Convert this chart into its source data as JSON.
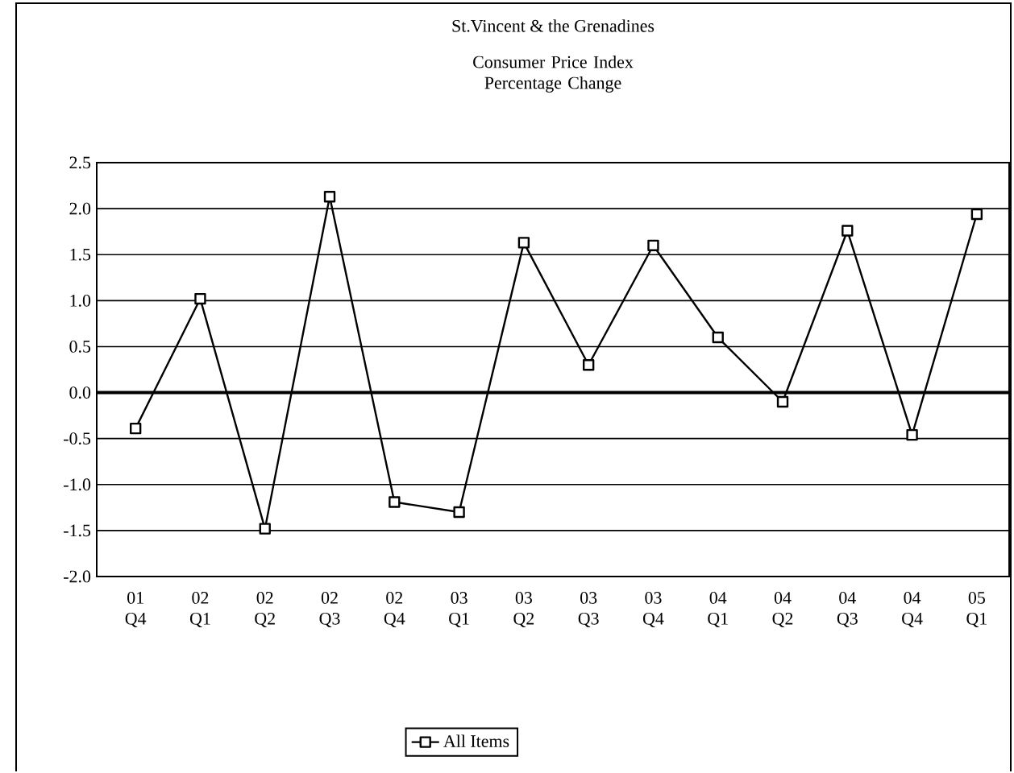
{
  "chart_data": {
    "type": "line",
    "title": "St.Vincent & the Grenadines",
    "subtitle": "Consumer Price Index Percentage Change",
    "categories": [
      "01 Q4",
      "02 Q1",
      "02 Q2",
      "02 Q3",
      "02 Q4",
      "03 Q1",
      "03 Q2",
      "03 Q3",
      "03 Q4",
      "04 Q1",
      "04 Q2",
      "04 Q3",
      "04 Q4",
      "05 Q1"
    ],
    "series": [
      {
        "name": "All Items",
        "color": "#000000",
        "values": [
          -0.39,
          1.02,
          -1.48,
          2.13,
          -1.19,
          -1.3,
          1.63,
          0.3,
          1.6,
          0.6,
          -0.1,
          1.76,
          -0.46,
          1.94
        ]
      }
    ],
    "ylim": [
      -2.0,
      2.5
    ],
    "yticks": [
      {
        "value": -2.0,
        "label": "-2.0"
      },
      {
        "value": -1.5,
        "label": "-1.5"
      },
      {
        "value": -1.0,
        "label": "-1.0"
      },
      {
        "value": -0.5,
        "label": "-0.5"
      },
      {
        "value": 0.0,
        "label": "0.0"
      },
      {
        "value": 0.5,
        "label": "0.5"
      },
      {
        "value": 1.0,
        "label": "1.0"
      },
      {
        "value": 1.5,
        "label": "1.5"
      },
      {
        "value": 2.0,
        "label": "2.0"
      },
      {
        "value": 2.5,
        "label": "2.5"
      }
    ],
    "ref_lines": [
      {
        "axis": "y",
        "value": 0.0,
        "color": "#000000"
      }
    ],
    "grid": "y",
    "legend": "bottom",
    "marker": "square",
    "line_style": "solid"
  }
}
